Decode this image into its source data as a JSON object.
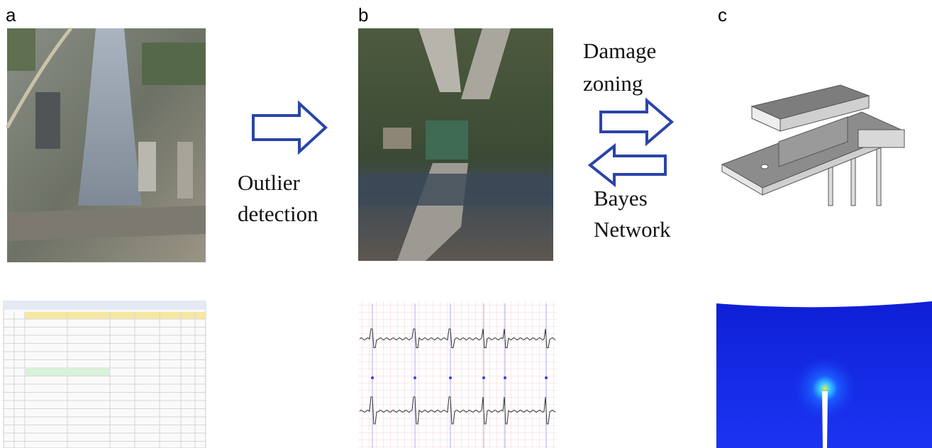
{
  "panels": [
    {
      "label": "a"
    },
    {
      "label": "b"
    },
    {
      "label": "c"
    }
  ],
  "transitions": [
    {
      "lines": [
        "Outlier",
        "detection"
      ]
    },
    {
      "lines": [
        "Damage",
        "zoning"
      ]
    },
    {
      "lines": [
        "Bayes",
        "Network"
      ]
    }
  ]
}
